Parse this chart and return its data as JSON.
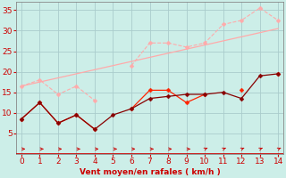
{
  "x": [
    0,
    1,
    2,
    3,
    4,
    5,
    6,
    7,
    8,
    9,
    10,
    11,
    12,
    13,
    14
  ],
  "line_pink_dashed_y": [
    16.5,
    18.0,
    14.5,
    16.5,
    13.0,
    null,
    21.5,
    27.0,
    27.0,
    26.0,
    27.0,
    31.5,
    32.5,
    35.5,
    32.5
  ],
  "line_pink_solid_y": [
    16.5,
    null,
    null,
    null,
    null,
    null,
    null,
    null,
    null,
    null,
    null,
    null,
    null,
    null,
    30.5
  ],
  "line_red_y": [
    8.5,
    12.5,
    7.5,
    9.5,
    6.0,
    null,
    11.0,
    15.5,
    15.5,
    12.5,
    14.5,
    null,
    15.5,
    null,
    19.5
  ],
  "line_darkred_y": [
    8.5,
    12.5,
    7.5,
    9.5,
    6.0,
    9.5,
    11.0,
    13.5,
    14.0,
    14.5,
    14.5,
    15.0,
    13.5,
    19.0,
    19.5
  ],
  "trend_pink_x0": 0,
  "trend_pink_y0": 16.5,
  "trend_pink_x1": 14,
  "trend_pink_y1": 30.5,
  "ylim": [
    0,
    37
  ],
  "xlim": [
    -0.3,
    14.3
  ],
  "yticks": [
    5,
    10,
    15,
    20,
    25,
    30,
    35
  ],
  "xticks": [
    0,
    1,
    2,
    3,
    4,
    5,
    6,
    7,
    8,
    9,
    10,
    11,
    12,
    13,
    14
  ],
  "xlabel": "Vent moyen/en rafales ( km/h )",
  "bg_color": "#cceee8",
  "grid_color": "#aacccc",
  "line_pink_color": "#ffaaaa",
  "line_red_color": "#ff2200",
  "line_darkred_color": "#880000",
  "axis_color": "#cc0000",
  "spine_color": "#888888"
}
